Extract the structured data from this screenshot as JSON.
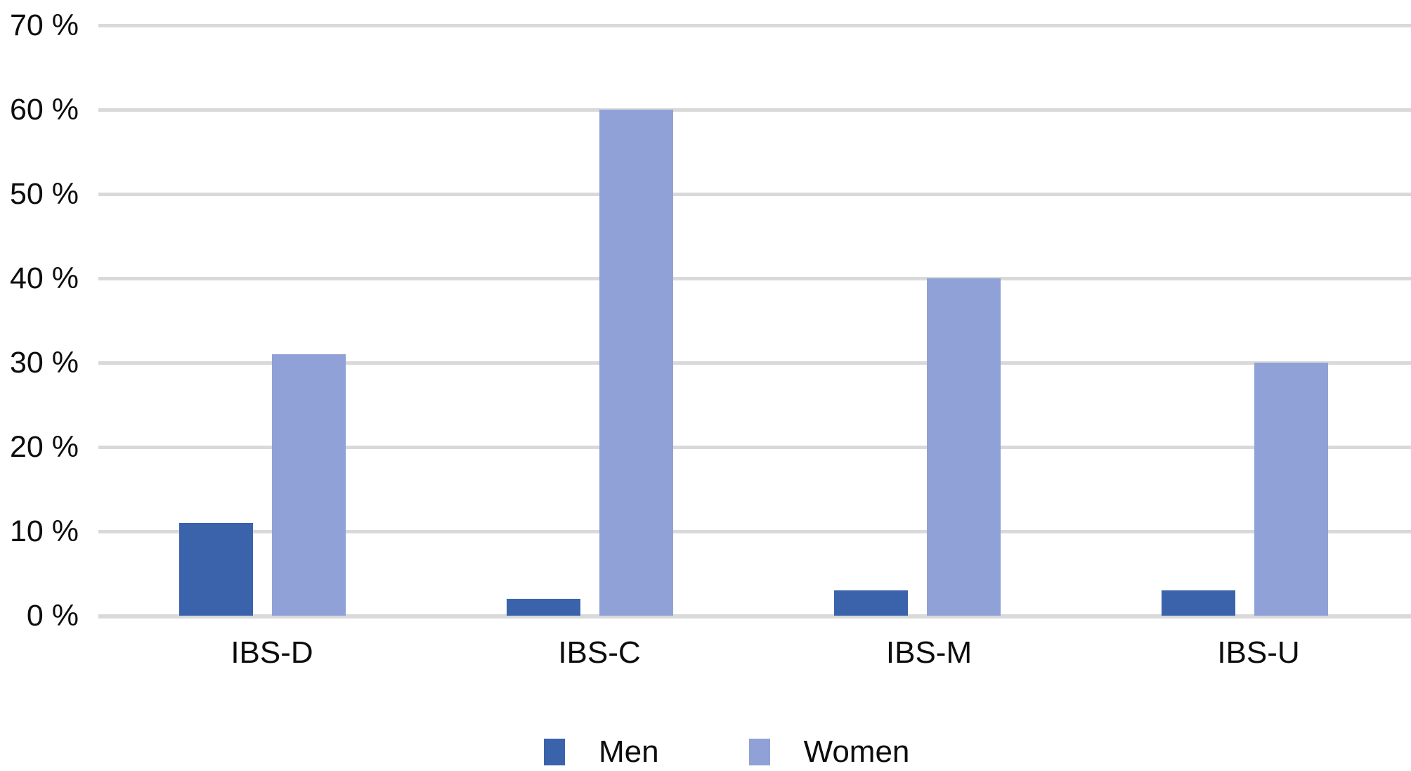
{
  "chart_data": {
    "type": "bar",
    "title": "",
    "xlabel": "",
    "ylabel": "",
    "categories": [
      "IBS-D",
      "IBS-C",
      "IBS-M",
      "IBS-U"
    ],
    "series": [
      {
        "name": "Men",
        "color": "#3B63AC",
        "values": [
          11,
          2,
          3,
          3
        ]
      },
      {
        "name": "Women",
        "color": "#8FA1D6",
        "values": [
          31,
          60,
          40,
          30
        ]
      }
    ],
    "ylim": [
      0,
      70
    ],
    "y_tick_step": 10,
    "y_ticks": [
      "70 %",
      "60 %",
      "50 %",
      "40 %",
      "30 %",
      "20 %",
      "10 %",
      "0 %"
    ],
    "grid": true,
    "gridline_color": "#D9D9D9",
    "background_color": "#FFFFFF",
    "text_color": "#0D0D0D",
    "legend_position": "bottom"
  }
}
